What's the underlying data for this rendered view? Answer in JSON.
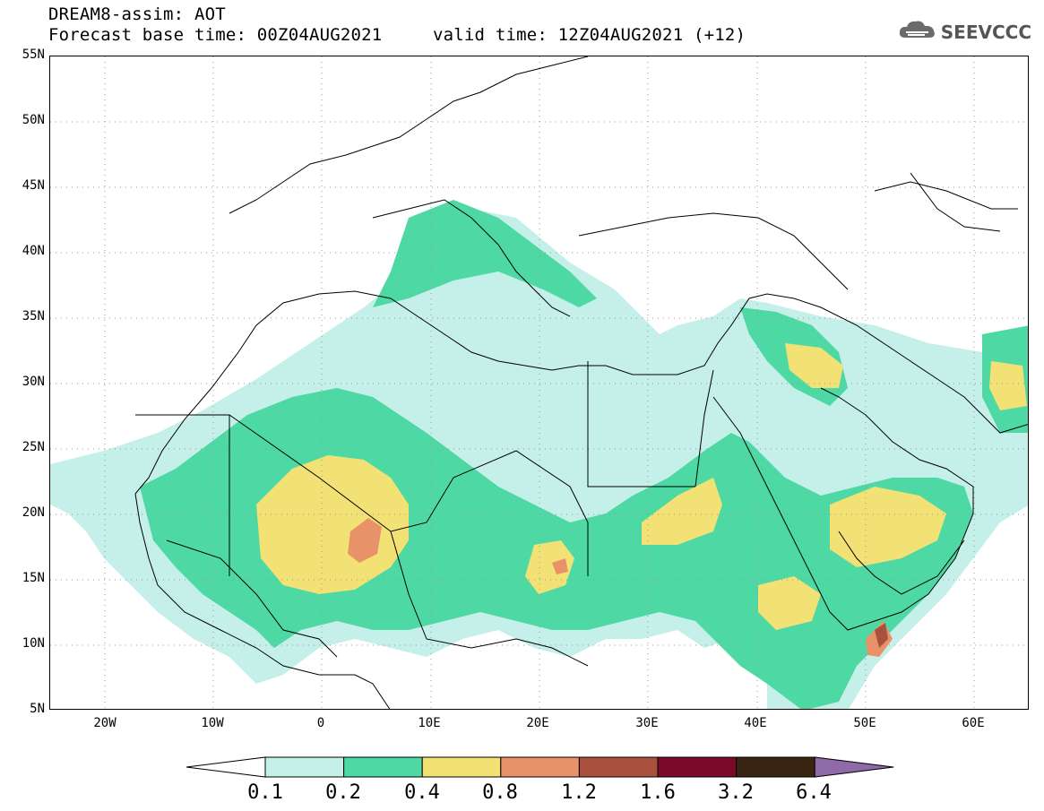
{
  "header": {
    "line1": "DREAM8-assim: AOT",
    "line2": "Forecast base time: 00Z04AUG2021",
    "line3": "valid time: 12Z04AUG2021 (+12)",
    "logo_text": "SEEVCCC",
    "logo_icon": "cloud-icon"
  },
  "map": {
    "y_axis_labels": [
      "55N",
      "50N",
      "45N",
      "40N",
      "35N",
      "30N",
      "25N",
      "20N",
      "15N",
      "10N",
      "5N"
    ],
    "x_axis_labels": [
      "20W",
      "10W",
      "0",
      "10E",
      "20E",
      "30E",
      "40E",
      "50E",
      "60E"
    ],
    "lat_range": [
      5,
      55
    ],
    "lon_range": [
      -25,
      65
    ],
    "variable": "AOT"
  },
  "legend": {
    "labels": [
      "0.1",
      "0.2",
      "0.4",
      "0.8",
      "1.2",
      "1.6",
      "3.2",
      "6.4"
    ],
    "colors": [
      "#ffffff",
      "#c5efe9",
      "#4ed9a4",
      "#f2e275",
      "#e8926a",
      "#a9503e",
      "#7a0a28",
      "#3a2412",
      "#8e6aa8"
    ]
  },
  "colors": {
    "c1": "#c5efe9",
    "c2": "#4ed9a4",
    "c3": "#f2e275",
    "c4": "#e8926a",
    "c5": "#a9503e",
    "c6": "#7a0a28"
  }
}
